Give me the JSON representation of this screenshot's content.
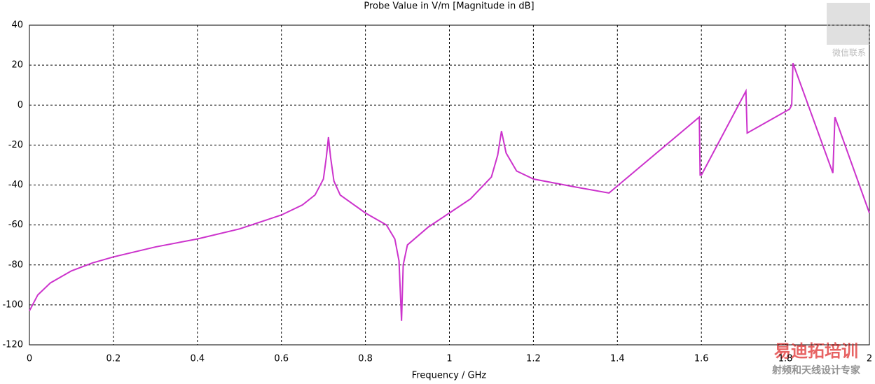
{
  "chart_data": {
    "type": "line",
    "title": "Probe Value in V/m [Magnitude in dB]",
    "x_label": "Frequency / GHz",
    "watermarks": [
      "微信联系",
      "易迪拓培训",
      "射频和天线设计专家"
    ],
    "xlim": [
      0,
      2
    ],
    "xticks": [
      0,
      0.2,
      0.4,
      0.6,
      0.8,
      1,
      1.2,
      1.4,
      1.6,
      1.8,
      2
    ],
    "ylim": [
      -120,
      40
    ],
    "yticks": [
      40,
      20,
      0,
      -20,
      -40,
      -60,
      -80,
      -100,
      -120
    ],
    "grid": true,
    "series": [
      {
        "name": "Probe",
        "color": "#cc33cc",
        "x": [
          0,
          0.02,
          0.05,
          0.1,
          0.15,
          0.2,
          0.3,
          0.4,
          0.5,
          0.6,
          0.65,
          0.68,
          0.7,
          0.707,
          0.712,
          0.717,
          0.725,
          0.74,
          0.8,
          0.85,
          0.87,
          0.88,
          0.886,
          0.89,
          0.9,
          0.95,
          1.0,
          1.05,
          1.1,
          1.115,
          1.124,
          1.135,
          1.16,
          1.2,
          1.3,
          1.38,
          1.595,
          1.597,
          1.6,
          1.706,
          1.709,
          1.81,
          1.815,
          1.818,
          1.913,
          1.918,
          2.0
        ],
        "values": [
          -103,
          -95,
          -89,
          -83,
          -79,
          -76,
          -71,
          -67,
          -62,
          -55,
          -50,
          -45,
          -37,
          -26,
          -16,
          -26,
          -38,
          -45,
          -54,
          -60,
          -67,
          -78,
          -108,
          -80,
          -70,
          -61,
          -54,
          -47,
          -36,
          -25,
          -13,
          -24,
          -33,
          -37,
          -41,
          -44,
          -6,
          -35,
          -35,
          7,
          -14,
          -2,
          0,
          21,
          -34,
          -6,
          -54
        ]
      }
    ]
  }
}
